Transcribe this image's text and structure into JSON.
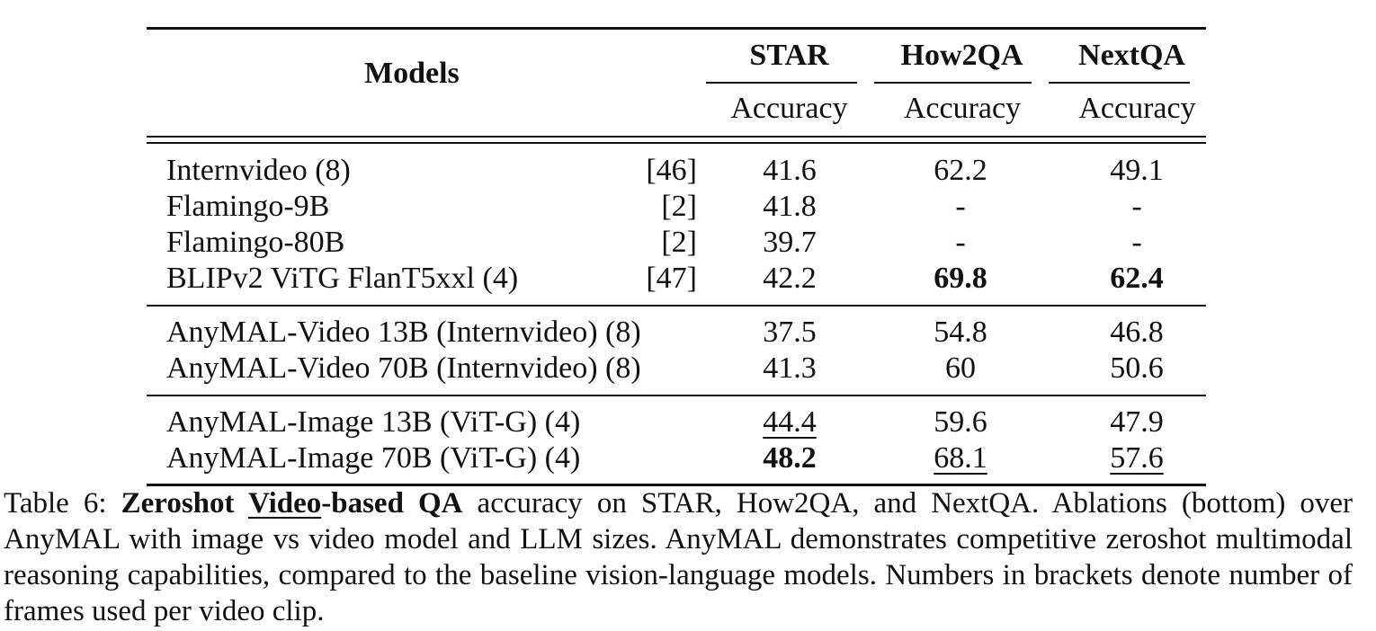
{
  "table": {
    "header": {
      "models": "Models",
      "groups": [
        {
          "name": "STAR",
          "metric": "Accuracy"
        },
        {
          "name": "How2QA",
          "metric": "Accuracy"
        },
        {
          "name": "NextQA",
          "metric": "Accuracy"
        }
      ]
    },
    "rows": [
      {
        "model": "Internvideo (8)",
        "ref": "[46]",
        "star": "41.6",
        "how2qa": "62.2",
        "nextqa": "49.1"
      },
      {
        "model": "Flamingo-9B",
        "ref": "[2]",
        "star": "41.8",
        "how2qa": "-",
        "nextqa": "-"
      },
      {
        "model": "Flamingo-80B",
        "ref": "[2]",
        "star": "39.7",
        "how2qa": "-",
        "nextqa": "-"
      },
      {
        "model": "BLIPv2 ViTG FlanT5xxl (4)",
        "ref": "[47]",
        "star": "42.2",
        "how2qa": "69.8",
        "nextqa": "62.4"
      },
      {
        "model": "AnyMAL-Video 13B (Internvideo) (8)",
        "ref": "",
        "star": "37.5",
        "how2qa": "54.8",
        "nextqa": "46.8"
      },
      {
        "model": "AnyMAL-Video 70B (Internvideo) (8)",
        "ref": "",
        "star": "41.3",
        "how2qa": "60",
        "nextqa": "50.6"
      },
      {
        "model": "AnyMAL-Image 13B (ViT-G) (4)",
        "ref": "",
        "star": "44.4",
        "how2qa": "59.6",
        "nextqa": "47.9"
      },
      {
        "model": "AnyMAL-Image 70B (ViT-G) (4)",
        "ref": "",
        "star": "48.2",
        "how2qa": "68.1",
        "nextqa": "57.6"
      }
    ]
  },
  "caption": {
    "label": "Table 6:",
    "title_a": "Zeroshot",
    "title_b": "Video",
    "title_c": "-based QA",
    "body": "accuracy on STAR, How2QA, and NextQA. Ablations (bottom) over AnyMAL with image vs video model and LLM sizes. AnyMAL demonstrates competitive zeroshot multimodal reasoning capabilities, compared to the baseline vision-language models. Numbers in brackets denote number of frames used per video clip."
  }
}
